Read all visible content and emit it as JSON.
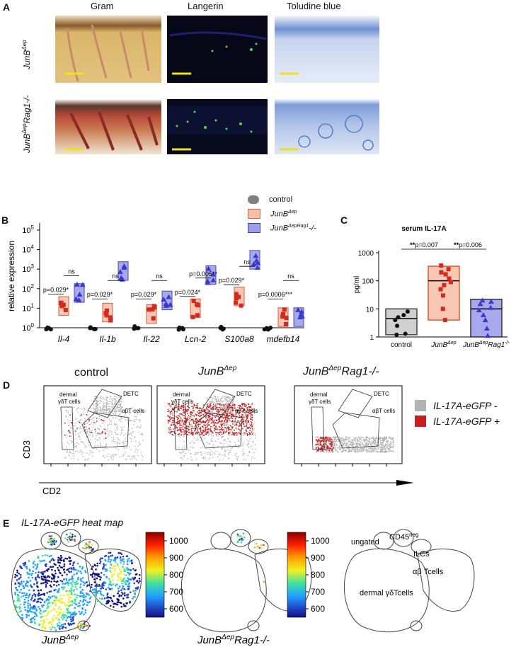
{
  "panel_a": {
    "letter": "A",
    "columns": [
      "Gram",
      "Langerin",
      "Toludine blue"
    ],
    "rows": [
      {
        "base": "JunB",
        "sup": "Δep",
        "tail": ""
      },
      {
        "base": "JunB",
        "sup": "Δep",
        "tail": "Rag1-/-"
      }
    ]
  },
  "panel_b": {
    "letter": "B",
    "legend": [
      {
        "base": "control",
        "sup": "",
        "tail": "",
        "color": "#808080"
      },
      {
        "base": "JunB",
        "sup": "Δep",
        "tail": "",
        "color": "#e8785e"
      },
      {
        "base": "JunB",
        "sup": "ΔepRag1",
        "tail": "-/-",
        "color": "#6f6fc9"
      }
    ],
    "y_label": "relative expression",
    "y_ticks": [
      {
        "b": "10",
        "e": "0",
        "v": 0
      },
      {
        "b": "10",
        "e": "1",
        "v": 1
      },
      {
        "b": "10",
        "e": "2",
        "v": 2
      },
      {
        "b": "10",
        "e": "3",
        "v": 3
      },
      {
        "b": "10",
        "e": "4",
        "v": 4
      },
      {
        "b": "10",
        "e": "5",
        "v": 5
      }
    ],
    "genes": [
      "Il-4",
      "Il-1b",
      "Il-22",
      "Lcn-2",
      "S100a8",
      "mdefb14"
    ],
    "sig": [
      {
        "g": 0,
        "p": "p=0.029*",
        "ns": "ns"
      },
      {
        "g": 1,
        "p": "p=0.029*",
        "ns": "ns"
      },
      {
        "g": 2,
        "p": "p=0.029*",
        "ns": "ns"
      },
      {
        "g": 3,
        "p": "p=0.024*",
        "p2": "p=0.005**"
      },
      {
        "g": 4,
        "p": "p=0.029*",
        "ns": "ns"
      },
      {
        "g": 5,
        "p": "p=0.0006***",
        "ns": "ns"
      }
    ]
  },
  "panel_c": {
    "letter": "C",
    "title": "serum IL-17A",
    "y_label": "pg/ml",
    "y_ticks": [
      "1",
      "10",
      "100",
      "1000"
    ],
    "groups": [
      {
        "base": "control",
        "sup": "",
        "tail": ""
      },
      {
        "base": "JunB",
        "sup": "Δep",
        "tail": ""
      },
      {
        "base": "JunB",
        "sup": "Δep",
        "tail": "Rag1",
        "sup2": "-/-"
      }
    ],
    "sig1_stars": "**",
    "sig1_p": "p=0.007",
    "sig2_stars": "**",
    "sig2_p": "p=0.006"
  },
  "panel_d": {
    "letter": "D",
    "titles": [
      {
        "base": "control",
        "sup": "",
        "tail": ""
      },
      {
        "base": "JunB",
        "sup": "Δep",
        "tail": ""
      },
      {
        "base": "JunB",
        "sup": "Δep",
        "tail": "Rag1-/-"
      }
    ],
    "gate_dermal_1": "dermal",
    "gate_dermal_2": "γδT cells",
    "gate_detc": "DETC",
    "gate_ab": "αβT cells",
    "y_label": "CD3",
    "x_label": "CD2",
    "legend": [
      {
        "text": "IL-17A-eGFP -",
        "color": "#b3b3b3"
      },
      {
        "text": "IL-17A-eGFP +",
        "color": "#c81e1e"
      }
    ]
  },
  "panel_e": {
    "letter": "E",
    "title": "IL-17A-eGFP heat map",
    "scale_ticks": [
      "1000",
      "900",
      "800",
      "700",
      "600"
    ],
    "map_labels": [
      {
        "base": "JunB",
        "sup": "Δep",
        "tail": ""
      },
      {
        "base": "JunB",
        "sup": "Δep",
        "tail": "Rag1-/-"
      }
    ],
    "key": {
      "ungated": "ungated",
      "cd45_base": "CD45",
      "cd45_sup": "neg",
      "ilcs": "ILCs",
      "ab": "αβ Tcells",
      "dermal": "dermal γδTcells"
    }
  },
  "chart_data": [
    {
      "type": "box",
      "panel": "B",
      "ylabel": "relative expression",
      "yscale": "log",
      "ylim": [
        1,
        100000
      ],
      "categories": [
        "Il-4",
        "Il-1b",
        "Il-22",
        "Lcn-2",
        "S100a8",
        "mdefb14"
      ],
      "series": [
        {
          "name": "control",
          "medians": [
            1,
            1,
            1,
            1,
            1,
            1
          ]
        },
        {
          "name": "JunBΔep",
          "medians": [
            13,
            6,
            5,
            10,
            40,
            3.5
          ]
        },
        {
          "name": "JunBΔepRag1-/-",
          "medians": [
            60,
            800,
            25,
            500,
            3000,
            3.5
          ]
        }
      ]
    },
    {
      "type": "box",
      "panel": "C",
      "title": "serum IL-17A",
      "ylabel": "pg/ml",
      "yscale": "log",
      "ylim": [
        1,
        1000
      ],
      "categories": [
        "control",
        "JunBΔep",
        "JunBΔepRag1-/-"
      ],
      "box": [
        {
          "q1": 1.2,
          "median": 4.5,
          "q3": 10
        },
        {
          "q1": 4,
          "median": 100,
          "q3": 330
        },
        {
          "q1": 1,
          "median": 10,
          "q3": 22
        }
      ],
      "points": [
        [
          6,
          8,
          5,
          4,
          2.5,
          1.3,
          1.2
        ],
        [
          350,
          260,
          200,
          170,
          120,
          90,
          70,
          50,
          30,
          10,
          4
        ],
        [
          20,
          18,
          15,
          11,
          9,
          6,
          4,
          2,
          1.1
        ]
      ]
    }
  ]
}
